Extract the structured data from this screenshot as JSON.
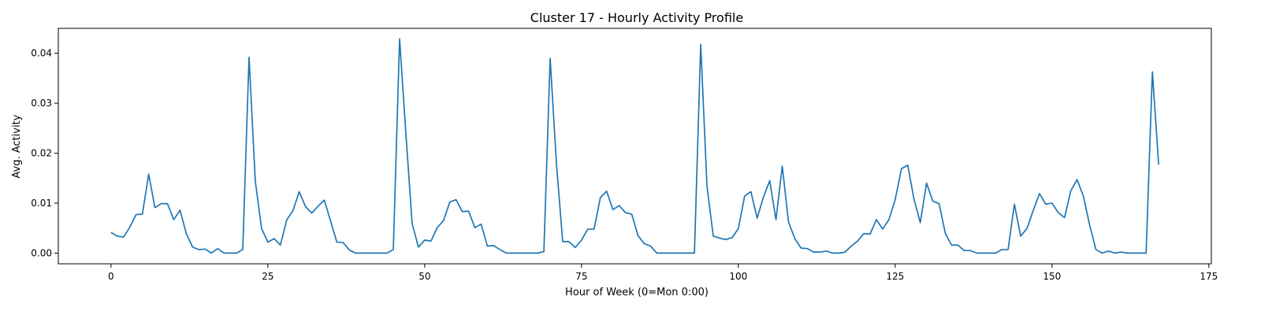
{
  "chart_data": {
    "type": "line",
    "title": "Cluster 17 - Hourly Activity Profile",
    "xlabel": "Hour of Week (0=Mon 0:00)",
    "ylabel": "Avg. Activity",
    "xlim": [
      -8.4,
      175.4
    ],
    "ylim": [
      -0.00215,
      0.045
    ],
    "xticks": [
      0,
      25,
      50,
      75,
      100,
      125,
      150,
      175
    ],
    "yticks": [
      0.0,
      0.01,
      0.02,
      0.03,
      0.04
    ],
    "xtick_labels": [
      "0",
      "25",
      "50",
      "75",
      "100",
      "125",
      "150",
      "175"
    ],
    "ytick_labels": [
      "0.00",
      "0.01",
      "0.02",
      "0.03",
      "0.04"
    ],
    "grid": false,
    "series": [
      {
        "color": "#1f77b4",
        "x": [
          0,
          1,
          2,
          3,
          4,
          5,
          6,
          7,
          8,
          9,
          10,
          11,
          12,
          13,
          14,
          15,
          16,
          17,
          18,
          19,
          20,
          21,
          22,
          23,
          24,
          25,
          26,
          27,
          28,
          29,
          30,
          31,
          32,
          33,
          34,
          35,
          36,
          37,
          38,
          39,
          40,
          41,
          42,
          43,
          44,
          45,
          46,
          47,
          48,
          49,
          50,
          51,
          52,
          53,
          54,
          55,
          56,
          57,
          58,
          59,
          60,
          61,
          62,
          63,
          64,
          65,
          66,
          67,
          68,
          69,
          70,
          71,
          72,
          73,
          74,
          75,
          76,
          77,
          78,
          79,
          80,
          81,
          82,
          83,
          84,
          85,
          86,
          87,
          88,
          89,
          90,
          91,
          92,
          93,
          94,
          95,
          96,
          97,
          98,
          99,
          100,
          101,
          102,
          103,
          104,
          105,
          106,
          107,
          108,
          109,
          110,
          111,
          112,
          113,
          114,
          115,
          116,
          117,
          118,
          119,
          120,
          121,
          122,
          123,
          124,
          125,
          126,
          127,
          128,
          129,
          130,
          131,
          132,
          133,
          134,
          135,
          136,
          137,
          138,
          139,
          140,
          141,
          142,
          143,
          144,
          145,
          146,
          147,
          148,
          149,
          150,
          151,
          152,
          153,
          154,
          155,
          156,
          157,
          158,
          159,
          160,
          161,
          162,
          163,
          164,
          165,
          166,
          167
        ],
        "y": [
          0.0041,
          0.0034,
          0.0032,
          0.0052,
          0.0077,
          0.0078,
          0.0158,
          0.0091,
          0.0099,
          0.0099,
          0.0067,
          0.0086,
          0.0039,
          0.0012,
          0.0007,
          0.0008,
          0.0,
          0.0009,
          0.0,
          0.0,
          0.0,
          0.0007,
          0.0392,
          0.0144,
          0.0049,
          0.0022,
          0.0029,
          0.0016,
          0.0066,
          0.0085,
          0.0123,
          0.0093,
          0.008,
          0.0094,
          0.0106,
          0.0064,
          0.0022,
          0.0021,
          0.0006,
          0.0,
          0.0,
          0.0,
          0.0,
          0.0,
          0.0,
          0.0007,
          0.0429,
          0.024,
          0.0059,
          0.0012,
          0.0026,
          0.0024,
          0.0051,
          0.0065,
          0.0102,
          0.0107,
          0.0083,
          0.0084,
          0.0051,
          0.0058,
          0.0014,
          0.0015,
          0.0007,
          0.0,
          0.0,
          0.0,
          0.0,
          0.0,
          0.0,
          0.0003,
          0.039,
          0.018,
          0.0023,
          0.0023,
          0.0011,
          0.0026,
          0.0048,
          0.0048,
          0.0111,
          0.0124,
          0.0087,
          0.0095,
          0.0081,
          0.0078,
          0.0035,
          0.0019,
          0.0014,
          0.0,
          0.0,
          0.0,
          0.0,
          0.0,
          0.0,
          0.0,
          0.0418,
          0.0134,
          0.0034,
          0.003,
          0.0027,
          0.0031,
          0.0049,
          0.0114,
          0.0123,
          0.007,
          0.0112,
          0.0145,
          0.0067,
          0.0174,
          0.0062,
          0.0029,
          0.001,
          0.0009,
          0.0002,
          0.0002,
          0.0004,
          0.0,
          0.0,
          0.0002,
          0.0014,
          0.0024,
          0.0039,
          0.0038,
          0.0067,
          0.0048,
          0.0067,
          0.0107,
          0.0169,
          0.0176,
          0.0108,
          0.0061,
          0.014,
          0.0104,
          0.0099,
          0.0039,
          0.0016,
          0.0016,
          0.0005,
          0.0005,
          0.0,
          0.0,
          0.0,
          0.0,
          0.0007,
          0.0007,
          0.0098,
          0.0034,
          0.0049,
          0.0085,
          0.0119,
          0.0098,
          0.01,
          0.0081,
          0.0071,
          0.0125,
          0.0147,
          0.0114,
          0.0056,
          0.0007,
          0.0,
          0.0004,
          0.0,
          0.0002,
          0.0,
          0.0,
          0.0,
          0.0,
          0.0363,
          0.0177
        ]
      }
    ]
  }
}
